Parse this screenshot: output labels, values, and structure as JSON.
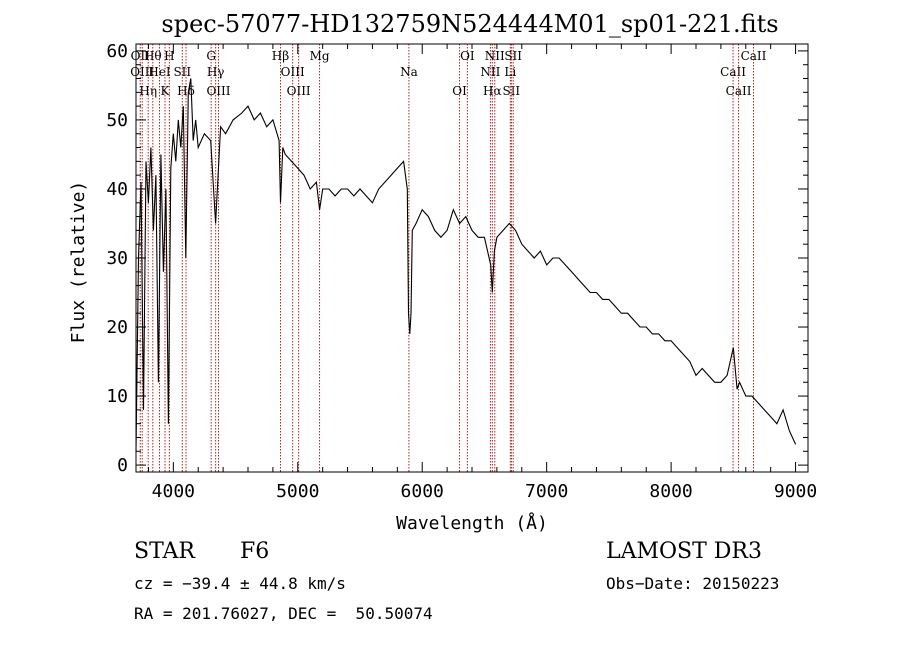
{
  "chart_data": {
    "type": "line",
    "title": "spec-57077-HD132759N524444M01_sp01-221.fits",
    "xlabel": "Wavelength (Å)",
    "ylabel": "Flux (relative)",
    "xlim": [
      3700,
      9100
    ],
    "ylim": [
      -1,
      61
    ],
    "xticks": [
      4000,
      5000,
      6000,
      7000,
      8000,
      9000
    ],
    "yticks": [
      0,
      10,
      20,
      30,
      40,
      50,
      60
    ],
    "grid": false,
    "line_color": "#000000",
    "marker_color": "#b22222",
    "spectrum": {
      "x": [
        3700,
        3720,
        3740,
        3760,
        3780,
        3800,
        3820,
        3840,
        3860,
        3880,
        3900,
        3920,
        3940,
        3960,
        3980,
        4000,
        4020,
        4040,
        4060,
        4080,
        4100,
        4120,
        4140,
        4160,
        4180,
        4200,
        4250,
        4300,
        4340,
        4380,
        4420,
        4480,
        4550,
        4600,
        4650,
        4700,
        4750,
        4800,
        4850,
        4861,
        4880,
        4900,
        4950,
        5000,
        5050,
        5100,
        5150,
        5175,
        5200,
        5250,
        5300,
        5350,
        5400,
        5450,
        5500,
        5550,
        5600,
        5650,
        5700,
        5750,
        5800,
        5850,
        5880,
        5890,
        5900,
        5910,
        5920,
        5950,
        6000,
        6050,
        6100,
        6150,
        6200,
        6250,
        6300,
        6350,
        6400,
        6450,
        6500,
        6550,
        6563,
        6580,
        6600,
        6650,
        6700,
        6750,
        6800,
        6850,
        6900,
        6950,
        7000,
        7050,
        7100,
        7150,
        7200,
        7250,
        7300,
        7350,
        7400,
        7450,
        7500,
        7550,
        7600,
        7650,
        7700,
        7750,
        7800,
        7850,
        7900,
        7950,
        8000,
        8050,
        8100,
        8150,
        8200,
        8250,
        8300,
        8350,
        8400,
        8450,
        8500,
        8530,
        8550,
        8600,
        8650,
        8700,
        8750,
        8800,
        8850,
        8900,
        8950,
        9000
      ],
      "y": [
        2,
        30,
        41,
        8,
        44,
        38,
        46,
        34,
        42,
        12,
        45,
        28,
        40,
        6,
        43,
        48,
        44,
        50,
        46,
        52,
        30,
        54,
        56,
        47,
        50,
        46,
        48,
        47,
        35,
        49,
        48,
        50,
        51,
        52,
        50,
        51,
        49,
        50,
        47,
        38,
        46,
        45,
        44,
        43,
        42,
        40,
        41,
        37,
        40,
        40,
        39,
        40,
        40,
        39,
        40,
        39,
        38,
        40,
        41,
        42,
        43,
        44,
        40,
        22,
        19,
        22,
        34,
        35,
        37,
        36,
        34,
        33,
        34,
        37,
        35,
        36,
        34,
        33,
        33,
        29,
        25,
        31,
        33,
        34,
        35,
        34,
        32,
        31,
        30,
        31,
        29,
        30,
        30,
        29,
        28,
        27,
        26,
        25,
        25,
        24,
        24,
        23,
        22,
        22,
        21,
        20,
        20,
        19,
        19,
        18,
        18,
        17,
        16,
        15,
        13,
        14,
        13,
        12,
        12,
        13,
        17,
        11,
        12,
        10,
        10,
        9,
        8,
        7,
        6,
        8,
        5,
        3
      ]
    },
    "line_markers": [
      {
        "wavelength": 3734,
        "label": "OII"
      },
      {
        "wavelength": 3750,
        "label": "OIII"
      },
      {
        "wavelength": 3798,
        "label": "Hη"
      },
      {
        "wavelength": 3835,
        "label": "Hθ"
      },
      {
        "wavelength": 3889,
        "label": "HeI"
      },
      {
        "wavelength": 3933,
        "label": "K"
      },
      {
        "wavelength": 3968,
        "label": "H"
      },
      {
        "wavelength": 4072,
        "label": "SII"
      },
      {
        "wavelength": 4102,
        "label": "Hδ"
      },
      {
        "wavelength": 4304,
        "label": "G"
      },
      {
        "wavelength": 4340,
        "label": "Hγ"
      },
      {
        "wavelength": 4363,
        "label": "OIII"
      },
      {
        "wavelength": 4861,
        "label": "Hβ"
      },
      {
        "wavelength": 4959,
        "label": "OIII"
      },
      {
        "wavelength": 5007,
        "label": "OIII"
      },
      {
        "wavelength": 5175,
        "label": "Mg"
      },
      {
        "wavelength": 5893,
        "label": "Na"
      },
      {
        "wavelength": 6300,
        "label": "OI"
      },
      {
        "wavelength": 6363,
        "label": "OI"
      },
      {
        "wavelength": 6548,
        "label": "NII"
      },
      {
        "wavelength": 6563,
        "label": "Hα"
      },
      {
        "wavelength": 6583,
        "label": "NII"
      },
      {
        "wavelength": 6708,
        "label": "Li"
      },
      {
        "wavelength": 6716,
        "label": "SII"
      },
      {
        "wavelength": 6731,
        "label": "SII"
      },
      {
        "wavelength": 8498,
        "label": "CaII"
      },
      {
        "wavelength": 8542,
        "label": "CaII"
      },
      {
        "wavelength": 8662,
        "label": "CaII"
      }
    ]
  },
  "footer": {
    "object_type": "STAR",
    "subclass": "F6",
    "survey": "LAMOST DR3",
    "redshift": "cz = −39.4 ± 44.8 km/s",
    "obs_date": "Obs−Date: 20150223",
    "coords": "RA = 201.76027, DEC =  50.50074"
  }
}
